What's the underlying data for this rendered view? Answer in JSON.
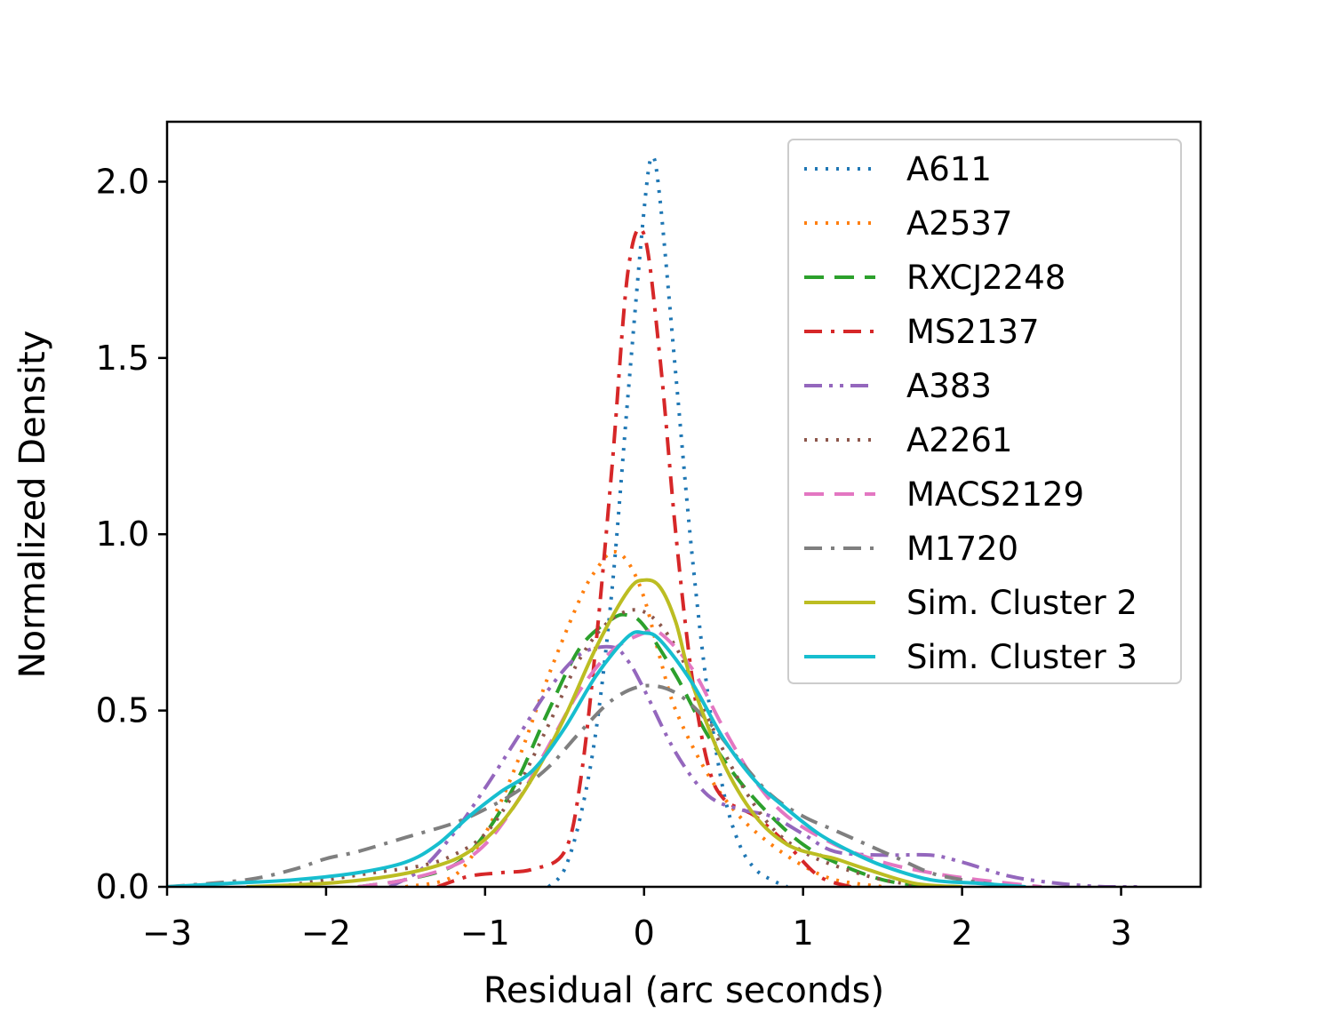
{
  "chart_data": {
    "type": "line",
    "title": "",
    "xlabel": "Residual (arc seconds)",
    "ylabel": "Normalized Density",
    "xlim": [
      -3,
      3.5
    ],
    "ylim": [
      0,
      2.17
    ],
    "xticks": [
      -3,
      -2,
      -1,
      0,
      1,
      2,
      3
    ],
    "xtick_labels": [
      "−3",
      "−2",
      "−1",
      "0",
      "1",
      "2",
      "3"
    ],
    "yticks": [
      0.0,
      0.5,
      1.0,
      1.5,
      2.0
    ],
    "ytick_labels": [
      "0.0",
      "0.5",
      "1.0",
      "1.5",
      "2.0"
    ],
    "legend_position": "top-right",
    "series": [
      {
        "name": "A611",
        "color": "#1f77b4",
        "style": "dotted",
        "x": [
          -0.6,
          -0.5,
          -0.4,
          -0.3,
          -0.2,
          -0.1,
          0.0,
          0.05,
          0.1,
          0.2,
          0.3,
          0.4,
          0.5,
          0.6,
          0.7,
          0.8,
          0.9
        ],
        "y": [
          0.0,
          0.05,
          0.2,
          0.45,
          0.85,
          1.4,
          1.92,
          2.07,
          1.95,
          1.45,
          0.95,
          0.55,
          0.27,
          0.12,
          0.05,
          0.02,
          0.0
        ]
      },
      {
        "name": "A2537",
        "color": "#ff7f0e",
        "style": "dotted",
        "x": [
          -1.5,
          -1.2,
          -1.0,
          -0.8,
          -0.6,
          -0.4,
          -0.3,
          -0.2,
          -0.1,
          0.0,
          0.1,
          0.2,
          0.4,
          0.6,
          0.8,
          1.0,
          1.2,
          1.5
        ],
        "y": [
          0.0,
          0.03,
          0.15,
          0.35,
          0.6,
          0.82,
          0.9,
          0.95,
          0.92,
          0.82,
          0.65,
          0.5,
          0.32,
          0.2,
          0.12,
          0.06,
          0.02,
          0.0
        ]
      },
      {
        "name": "RXCJ2248",
        "color": "#2ca02c",
        "style": "dashed",
        "x": [
          -1.8,
          -1.5,
          -1.2,
          -1.0,
          -0.8,
          -0.6,
          -0.4,
          -0.2,
          -0.1,
          0.0,
          0.2,
          0.4,
          0.6,
          0.8,
          1.0,
          1.2,
          1.5,
          1.8
        ],
        "y": [
          0.0,
          0.02,
          0.06,
          0.15,
          0.3,
          0.5,
          0.68,
          0.76,
          0.77,
          0.74,
          0.6,
          0.43,
          0.3,
          0.2,
          0.12,
          0.07,
          0.02,
          0.0
        ]
      },
      {
        "name": "MS2137",
        "color": "#d62728",
        "style": "dashdot",
        "x": [
          -1.3,
          -1.1,
          -0.9,
          -0.7,
          -0.5,
          -0.4,
          -0.3,
          -0.2,
          -0.1,
          0.0,
          0.1,
          0.2,
          0.3,
          0.4,
          0.5,
          0.7,
          0.9,
          1.1,
          1.3
        ],
        "y": [
          0.0,
          0.03,
          0.04,
          0.05,
          0.1,
          0.3,
          0.7,
          1.2,
          1.75,
          1.85,
          1.5,
          1.0,
          0.6,
          0.35,
          0.25,
          0.2,
          0.12,
          0.03,
          0.0
        ]
      },
      {
        "name": "A383",
        "color": "#9467bd",
        "style": "dashdotdot",
        "x": [
          -1.6,
          -1.4,
          -1.2,
          -1.0,
          -0.8,
          -0.6,
          -0.4,
          -0.2,
          -0.1,
          0.0,
          0.2,
          0.4,
          0.6,
          0.8,
          1.0,
          1.2,
          1.5,
          1.8,
          2.0,
          2.3,
          2.6,
          2.9,
          3.1
        ],
        "y": [
          0.0,
          0.05,
          0.15,
          0.28,
          0.42,
          0.56,
          0.66,
          0.68,
          0.64,
          0.56,
          0.38,
          0.26,
          0.22,
          0.2,
          0.15,
          0.1,
          0.09,
          0.09,
          0.07,
          0.03,
          0.01,
          0.0,
          0.0
        ]
      },
      {
        "name": "A2261",
        "color": "#8c564b",
        "style": "dotted",
        "x": [
          -2.3,
          -2.0,
          -1.7,
          -1.4,
          -1.2,
          -1.0,
          -0.8,
          -0.6,
          -0.4,
          -0.2,
          0.0,
          0.2,
          0.4,
          0.6,
          0.8,
          1.0,
          1.2,
          1.5,
          1.8
        ],
        "y": [
          0.0,
          0.02,
          0.04,
          0.06,
          0.09,
          0.15,
          0.28,
          0.46,
          0.65,
          0.76,
          0.78,
          0.68,
          0.48,
          0.3,
          0.17,
          0.1,
          0.06,
          0.02,
          0.0
        ]
      },
      {
        "name": "MACS2129",
        "color": "#e377c2",
        "style": "dashed",
        "x": [
          -1.8,
          -1.5,
          -1.2,
          -1.0,
          -0.8,
          -0.6,
          -0.4,
          -0.2,
          0.0,
          0.1,
          0.3,
          0.5,
          0.7,
          0.9,
          1.2,
          1.5,
          1.8,
          2.1,
          2.5
        ],
        "y": [
          0.0,
          0.02,
          0.06,
          0.12,
          0.24,
          0.4,
          0.56,
          0.67,
          0.72,
          0.72,
          0.62,
          0.45,
          0.3,
          0.2,
          0.12,
          0.07,
          0.04,
          0.02,
          0.0
        ]
      },
      {
        "name": "M1720",
        "color": "#7f7f7f",
        "style": "dashdot",
        "x": [
          -3.0,
          -2.5,
          -2.2,
          -2.0,
          -1.8,
          -1.5,
          -1.2,
          -1.0,
          -0.8,
          -0.6,
          -0.4,
          -0.2,
          0.0,
          0.2,
          0.4,
          0.6,
          0.8,
          1.0,
          1.2,
          1.4,
          1.6,
          1.8,
          2.0,
          2.3
        ],
        "y": [
          0.0,
          0.02,
          0.05,
          0.08,
          0.1,
          0.14,
          0.18,
          0.22,
          0.27,
          0.34,
          0.44,
          0.53,
          0.57,
          0.55,
          0.47,
          0.36,
          0.26,
          0.2,
          0.16,
          0.12,
          0.08,
          0.04,
          0.02,
          0.0
        ]
      },
      {
        "name": "Sim. Cluster 2",
        "color": "#bcbd22",
        "style": "solid",
        "x": [
          -2.5,
          -2.0,
          -1.6,
          -1.3,
          -1.1,
          -0.9,
          -0.7,
          -0.5,
          -0.3,
          -0.1,
          0.0,
          0.1,
          0.2,
          0.3,
          0.5,
          0.7,
          0.9,
          1.1,
          1.2,
          1.4,
          1.7,
          2.0
        ],
        "y": [
          0.0,
          0.01,
          0.03,
          0.06,
          0.1,
          0.18,
          0.31,
          0.48,
          0.68,
          0.84,
          0.87,
          0.85,
          0.75,
          0.58,
          0.35,
          0.2,
          0.12,
          0.09,
          0.08,
          0.05,
          0.01,
          0.0
        ]
      },
      {
        "name": "Sim. Cluster 3",
        "color": "#17becf",
        "style": "solid",
        "x": [
          -3.0,
          -2.6,
          -2.2,
          -1.8,
          -1.5,
          -1.3,
          -1.1,
          -0.9,
          -0.7,
          -0.5,
          -0.3,
          -0.1,
          0.0,
          0.1,
          0.3,
          0.5,
          0.7,
          0.9,
          1.1,
          1.3,
          1.5,
          1.8,
          2.1,
          2.4
        ],
        "y": [
          0.0,
          0.01,
          0.02,
          0.04,
          0.07,
          0.12,
          0.2,
          0.27,
          0.33,
          0.45,
          0.6,
          0.71,
          0.72,
          0.7,
          0.58,
          0.42,
          0.3,
          0.22,
          0.15,
          0.1,
          0.06,
          0.02,
          0.01,
          0.0
        ]
      }
    ]
  }
}
